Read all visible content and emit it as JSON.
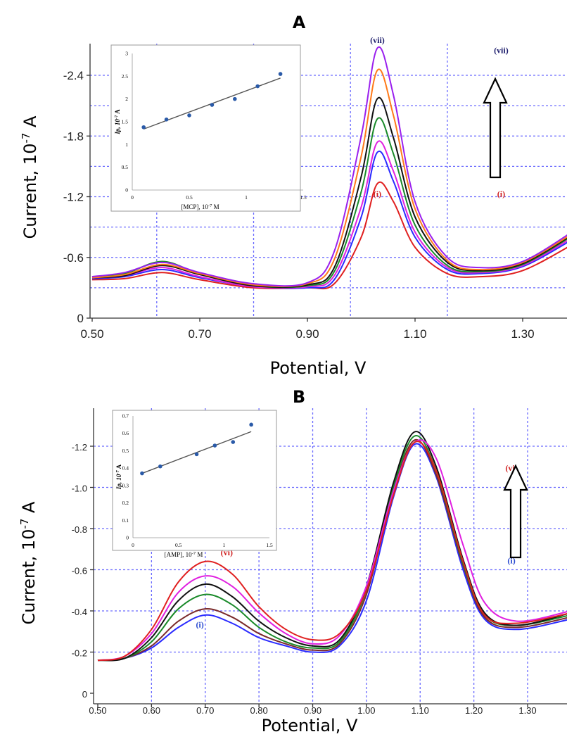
{
  "chart_data": [
    {
      "panel": "A",
      "type": "line",
      "xlabel": "Potential, V",
      "ylabel": "Current, 10",
      "ylabel_exp": "-7",
      "ylabel_unit": " A",
      "x_ticks": [
        "0.50",
        "0.70",
        "0.90",
        "1.10",
        "1.30"
      ],
      "y_ticks": [
        "0",
        "-0.6",
        "-1.2",
        "-1.8",
        "-2.4"
      ],
      "xlim": [
        0.5,
        1.4
      ],
      "ylim": [
        0,
        -2.75
      ],
      "grid": true,
      "series": [
        {
          "color": "#e02020",
          "x": [
            0.5,
            0.56,
            0.63,
            0.7,
            0.8,
            0.9,
            0.95,
            1.0,
            1.03,
            1.06,
            1.1,
            1.16,
            1.22,
            1.3,
            1.4
          ],
          "y": [
            -0.38,
            -0.39,
            -0.45,
            -0.38,
            -0.3,
            -0.3,
            -0.34,
            -0.8,
            -1.33,
            -1.15,
            -0.7,
            -0.44,
            -0.41,
            -0.47,
            -0.75
          ]
        },
        {
          "color": "#2a2aff",
          "x": [
            0.5,
            0.56,
            0.63,
            0.7,
            0.8,
            0.9,
            0.95,
            1.0,
            1.03,
            1.06,
            1.1,
            1.16,
            1.22,
            1.3,
            1.4
          ],
          "y": [
            -0.39,
            -0.41,
            -0.48,
            -0.4,
            -0.31,
            -0.3,
            -0.38,
            -1.0,
            -1.64,
            -1.35,
            -0.8,
            -0.48,
            -0.44,
            -0.51,
            -0.8
          ]
        },
        {
          "color": "#e020e0",
          "x": [
            0.5,
            0.56,
            0.63,
            0.7,
            0.8,
            0.9,
            0.95,
            1.0,
            1.03,
            1.06,
            1.1,
            1.16,
            1.22,
            1.3,
            1.4
          ],
          "y": [
            -0.4,
            -0.42,
            -0.5,
            -0.41,
            -0.31,
            -0.31,
            -0.42,
            -1.1,
            -1.74,
            -1.45,
            -0.85,
            -0.5,
            -0.45,
            -0.52,
            -0.82
          ]
        },
        {
          "color": "#1a8a2a",
          "x": [
            0.5,
            0.56,
            0.63,
            0.7,
            0.8,
            0.9,
            0.95,
            1.0,
            1.03,
            1.06,
            1.1,
            1.16,
            1.22,
            1.3,
            1.4
          ],
          "y": [
            -0.41,
            -0.44,
            -0.56,
            -0.44,
            -0.32,
            -0.32,
            -0.46,
            -1.25,
            -1.97,
            -1.62,
            -0.92,
            -0.52,
            -0.46,
            -0.53,
            -0.84
          ]
        },
        {
          "color": "#111111",
          "x": [
            0.5,
            0.56,
            0.63,
            0.7,
            0.8,
            0.9,
            0.95,
            1.0,
            1.03,
            1.06,
            1.1,
            1.16,
            1.22,
            1.3,
            1.4
          ],
          "y": [
            -0.4,
            -0.42,
            -0.52,
            -0.43,
            -0.32,
            -0.33,
            -0.5,
            -1.4,
            -2.17,
            -1.78,
            -1.0,
            -0.55,
            -0.47,
            -0.54,
            -0.85
          ]
        },
        {
          "color": "#ff7a1a",
          "x": [
            0.5,
            0.56,
            0.63,
            0.7,
            0.8,
            0.9,
            0.95,
            1.0,
            1.03,
            1.06,
            1.1,
            1.16,
            1.22,
            1.3,
            1.4
          ],
          "y": [
            -0.4,
            -0.43,
            -0.53,
            -0.44,
            -0.33,
            -0.34,
            -0.58,
            -1.6,
            -2.45,
            -2.0,
            -1.08,
            -0.57,
            -0.48,
            -0.55,
            -0.86
          ]
        },
        {
          "color": "#9a20ee",
          "x": [
            0.5,
            0.56,
            0.63,
            0.7,
            0.8,
            0.9,
            0.95,
            1.0,
            1.03,
            1.06,
            1.1,
            1.16,
            1.22,
            1.3,
            1.4
          ],
          "y": [
            -0.41,
            -0.45,
            -0.55,
            -0.45,
            -0.34,
            -0.35,
            -0.66,
            -1.8,
            -2.67,
            -2.2,
            -1.15,
            -0.6,
            -0.5,
            -0.56,
            -0.88
          ]
        }
      ],
      "labels": [
        {
          "text": "(vii)",
          "x": 1.03,
          "y": -2.72,
          "color": "#1a1a6a"
        },
        {
          "text": "(i)",
          "x": 1.03,
          "y": -1.2,
          "color": "#d02020"
        },
        {
          "text": "(vii)",
          "x": 1.26,
          "y": -2.62,
          "color": "#1a1a6a"
        },
        {
          "text": "(i)",
          "x": 1.26,
          "y": -1.2,
          "color": "#d02020"
        }
      ],
      "inset": {
        "type": "scatter",
        "xlabel": "[MCP], 10",
        "xlabel_exp": "-7",
        "xlabel_unit": " M",
        "ylabel": "Ip, 10",
        "ylabel_exp": "-7",
        "ylabel_unit": " A",
        "x_ticks": [
          "0",
          "0.5",
          "1",
          "1.5"
        ],
        "y_ticks": [
          "0",
          "0.5",
          "1",
          "1.5",
          "2",
          "2.5",
          "3"
        ],
        "xlim": [
          0,
          1.5
        ],
        "ylim": [
          0,
          3
        ],
        "x": [
          0.1,
          0.3,
          0.5,
          0.7,
          0.9,
          1.1,
          1.3
        ],
        "y": [
          1.38,
          1.55,
          1.64,
          1.87,
          2.0,
          2.28,
          2.55
        ],
        "fit": [
          [
            0.1,
            1.34
          ],
          [
            1.3,
            2.46
          ]
        ]
      }
    },
    {
      "panel": "B",
      "type": "line",
      "xlabel": "Potential, V",
      "ylabel": "Current, 10",
      "ylabel_exp": "-7",
      "ylabel_unit": " A",
      "x_ticks": [
        "0.50",
        "0.60",
        "0.70",
        "0.80",
        "0.90",
        "1.00",
        "1.10",
        "1.20",
        "1.30"
      ],
      "y_ticks": [
        "0",
        "-0.2",
        "-0.4",
        "-0.6",
        "-0.8",
        "-1.0",
        "-1.2"
      ],
      "xlim": [
        0.5,
        1.38
      ],
      "ylim": [
        0,
        -1.35
      ],
      "grid": true,
      "series": [
        {
          "color": "#2a2aff",
          "x": [
            0.5,
            0.55,
            0.6,
            0.65,
            0.7,
            0.75,
            0.8,
            0.85,
            0.9,
            0.95,
            1.0,
            1.05,
            1.09,
            1.13,
            1.18,
            1.22,
            1.28,
            1.38
          ],
          "y": [
            -0.16,
            -0.17,
            -0.22,
            -0.32,
            -0.38,
            -0.34,
            -0.27,
            -0.23,
            -0.2,
            -0.23,
            -0.45,
            -0.95,
            -1.21,
            -1.05,
            -0.6,
            -0.36,
            -0.31,
            -0.36
          ]
        },
        {
          "color": "#7a2a2a",
          "x": [
            0.5,
            0.55,
            0.6,
            0.65,
            0.7,
            0.75,
            0.8,
            0.85,
            0.9,
            0.95,
            1.0,
            1.05,
            1.09,
            1.13,
            1.18,
            1.22,
            1.28,
            1.38
          ],
          "y": [
            -0.16,
            -0.17,
            -0.23,
            -0.35,
            -0.41,
            -0.37,
            -0.29,
            -0.24,
            -0.21,
            -0.24,
            -0.48,
            -0.98,
            -1.23,
            -1.06,
            -0.62,
            -0.37,
            -0.32,
            -0.37
          ]
        },
        {
          "color": "#1a8a2a",
          "x": [
            0.5,
            0.55,
            0.6,
            0.65,
            0.7,
            0.75,
            0.8,
            0.85,
            0.9,
            0.95,
            1.0,
            1.05,
            1.09,
            1.13,
            1.18,
            1.22,
            1.28,
            1.38
          ],
          "y": [
            -0.16,
            -0.17,
            -0.25,
            -0.41,
            -0.48,
            -0.43,
            -0.32,
            -0.25,
            -0.22,
            -0.25,
            -0.5,
            -1.0,
            -1.25,
            -1.08,
            -0.63,
            -0.38,
            -0.33,
            -0.38
          ]
        },
        {
          "color": "#111111",
          "x": [
            0.5,
            0.55,
            0.6,
            0.65,
            0.7,
            0.75,
            0.8,
            0.85,
            0.9,
            0.95,
            1.0,
            1.05,
            1.09,
            1.13,
            1.18,
            1.22,
            1.28,
            1.38
          ],
          "y": [
            -0.16,
            -0.17,
            -0.27,
            -0.45,
            -0.53,
            -0.47,
            -0.35,
            -0.27,
            -0.23,
            -0.26,
            -0.52,
            -1.02,
            -1.27,
            -1.1,
            -0.65,
            -0.39,
            -0.33,
            -0.39
          ]
        },
        {
          "color": "#e020e0",
          "x": [
            0.5,
            0.55,
            0.6,
            0.65,
            0.7,
            0.75,
            0.8,
            0.85,
            0.9,
            0.95,
            1.0,
            1.05,
            1.09,
            1.13,
            1.18,
            1.22,
            1.28,
            1.38
          ],
          "y": [
            -0.16,
            -0.18,
            -0.29,
            -0.49,
            -0.57,
            -0.52,
            -0.39,
            -0.29,
            -0.24,
            -0.28,
            -0.52,
            -0.98,
            -1.22,
            -1.14,
            -0.72,
            -0.44,
            -0.35,
            -0.4
          ]
        },
        {
          "color": "#e02020",
          "x": [
            0.5,
            0.55,
            0.6,
            0.65,
            0.7,
            0.75,
            0.8,
            0.85,
            0.9,
            0.95,
            1.0,
            1.05,
            1.09,
            1.13,
            1.18,
            1.22,
            1.28,
            1.38
          ],
          "y": [
            -0.16,
            -0.18,
            -0.31,
            -0.54,
            -0.64,
            -0.58,
            -0.42,
            -0.31,
            -0.26,
            -0.29,
            -0.5,
            -0.96,
            -1.22,
            -1.08,
            -0.64,
            -0.38,
            -0.34,
            -0.39
          ]
        }
      ],
      "labels": [
        {
          "text": "(vi)",
          "x": 0.74,
          "y": -0.67,
          "color": "#d02020"
        },
        {
          "text": "(i)",
          "x": 0.69,
          "y": -0.32,
          "color": "#2a4ad0"
        },
        {
          "text": "(vi)",
          "x": 1.27,
          "y": -1.08,
          "color": "#d02020"
        },
        {
          "text": "(i)",
          "x": 1.27,
          "y": -0.63,
          "color": "#2a4ad0"
        }
      ],
      "inset": {
        "type": "scatter",
        "xlabel": "[AMP], 10",
        "xlabel_exp": "-7",
        "xlabel_unit": " M",
        "ylabel": "Ip, 10",
        "ylabel_exp": "-7",
        "ylabel_unit": " A",
        "x_ticks": [
          "0",
          "0.5",
          "1",
          "1.5"
        ],
        "y_ticks": [
          "0",
          "0.1",
          "0.2",
          "0.3",
          "0.4",
          "0.5",
          "0.6",
          "0.7"
        ],
        "xlim": [
          0,
          1.5
        ],
        "ylim": [
          0,
          0.7
        ],
        "x": [
          0.1,
          0.3,
          0.7,
          0.9,
          1.1,
          1.3
        ],
        "y": [
          0.37,
          0.41,
          0.48,
          0.53,
          0.55,
          0.65
        ],
        "fit": [
          [
            0.1,
            0.37
          ],
          [
            1.3,
            0.61
          ]
        ]
      }
    }
  ]
}
